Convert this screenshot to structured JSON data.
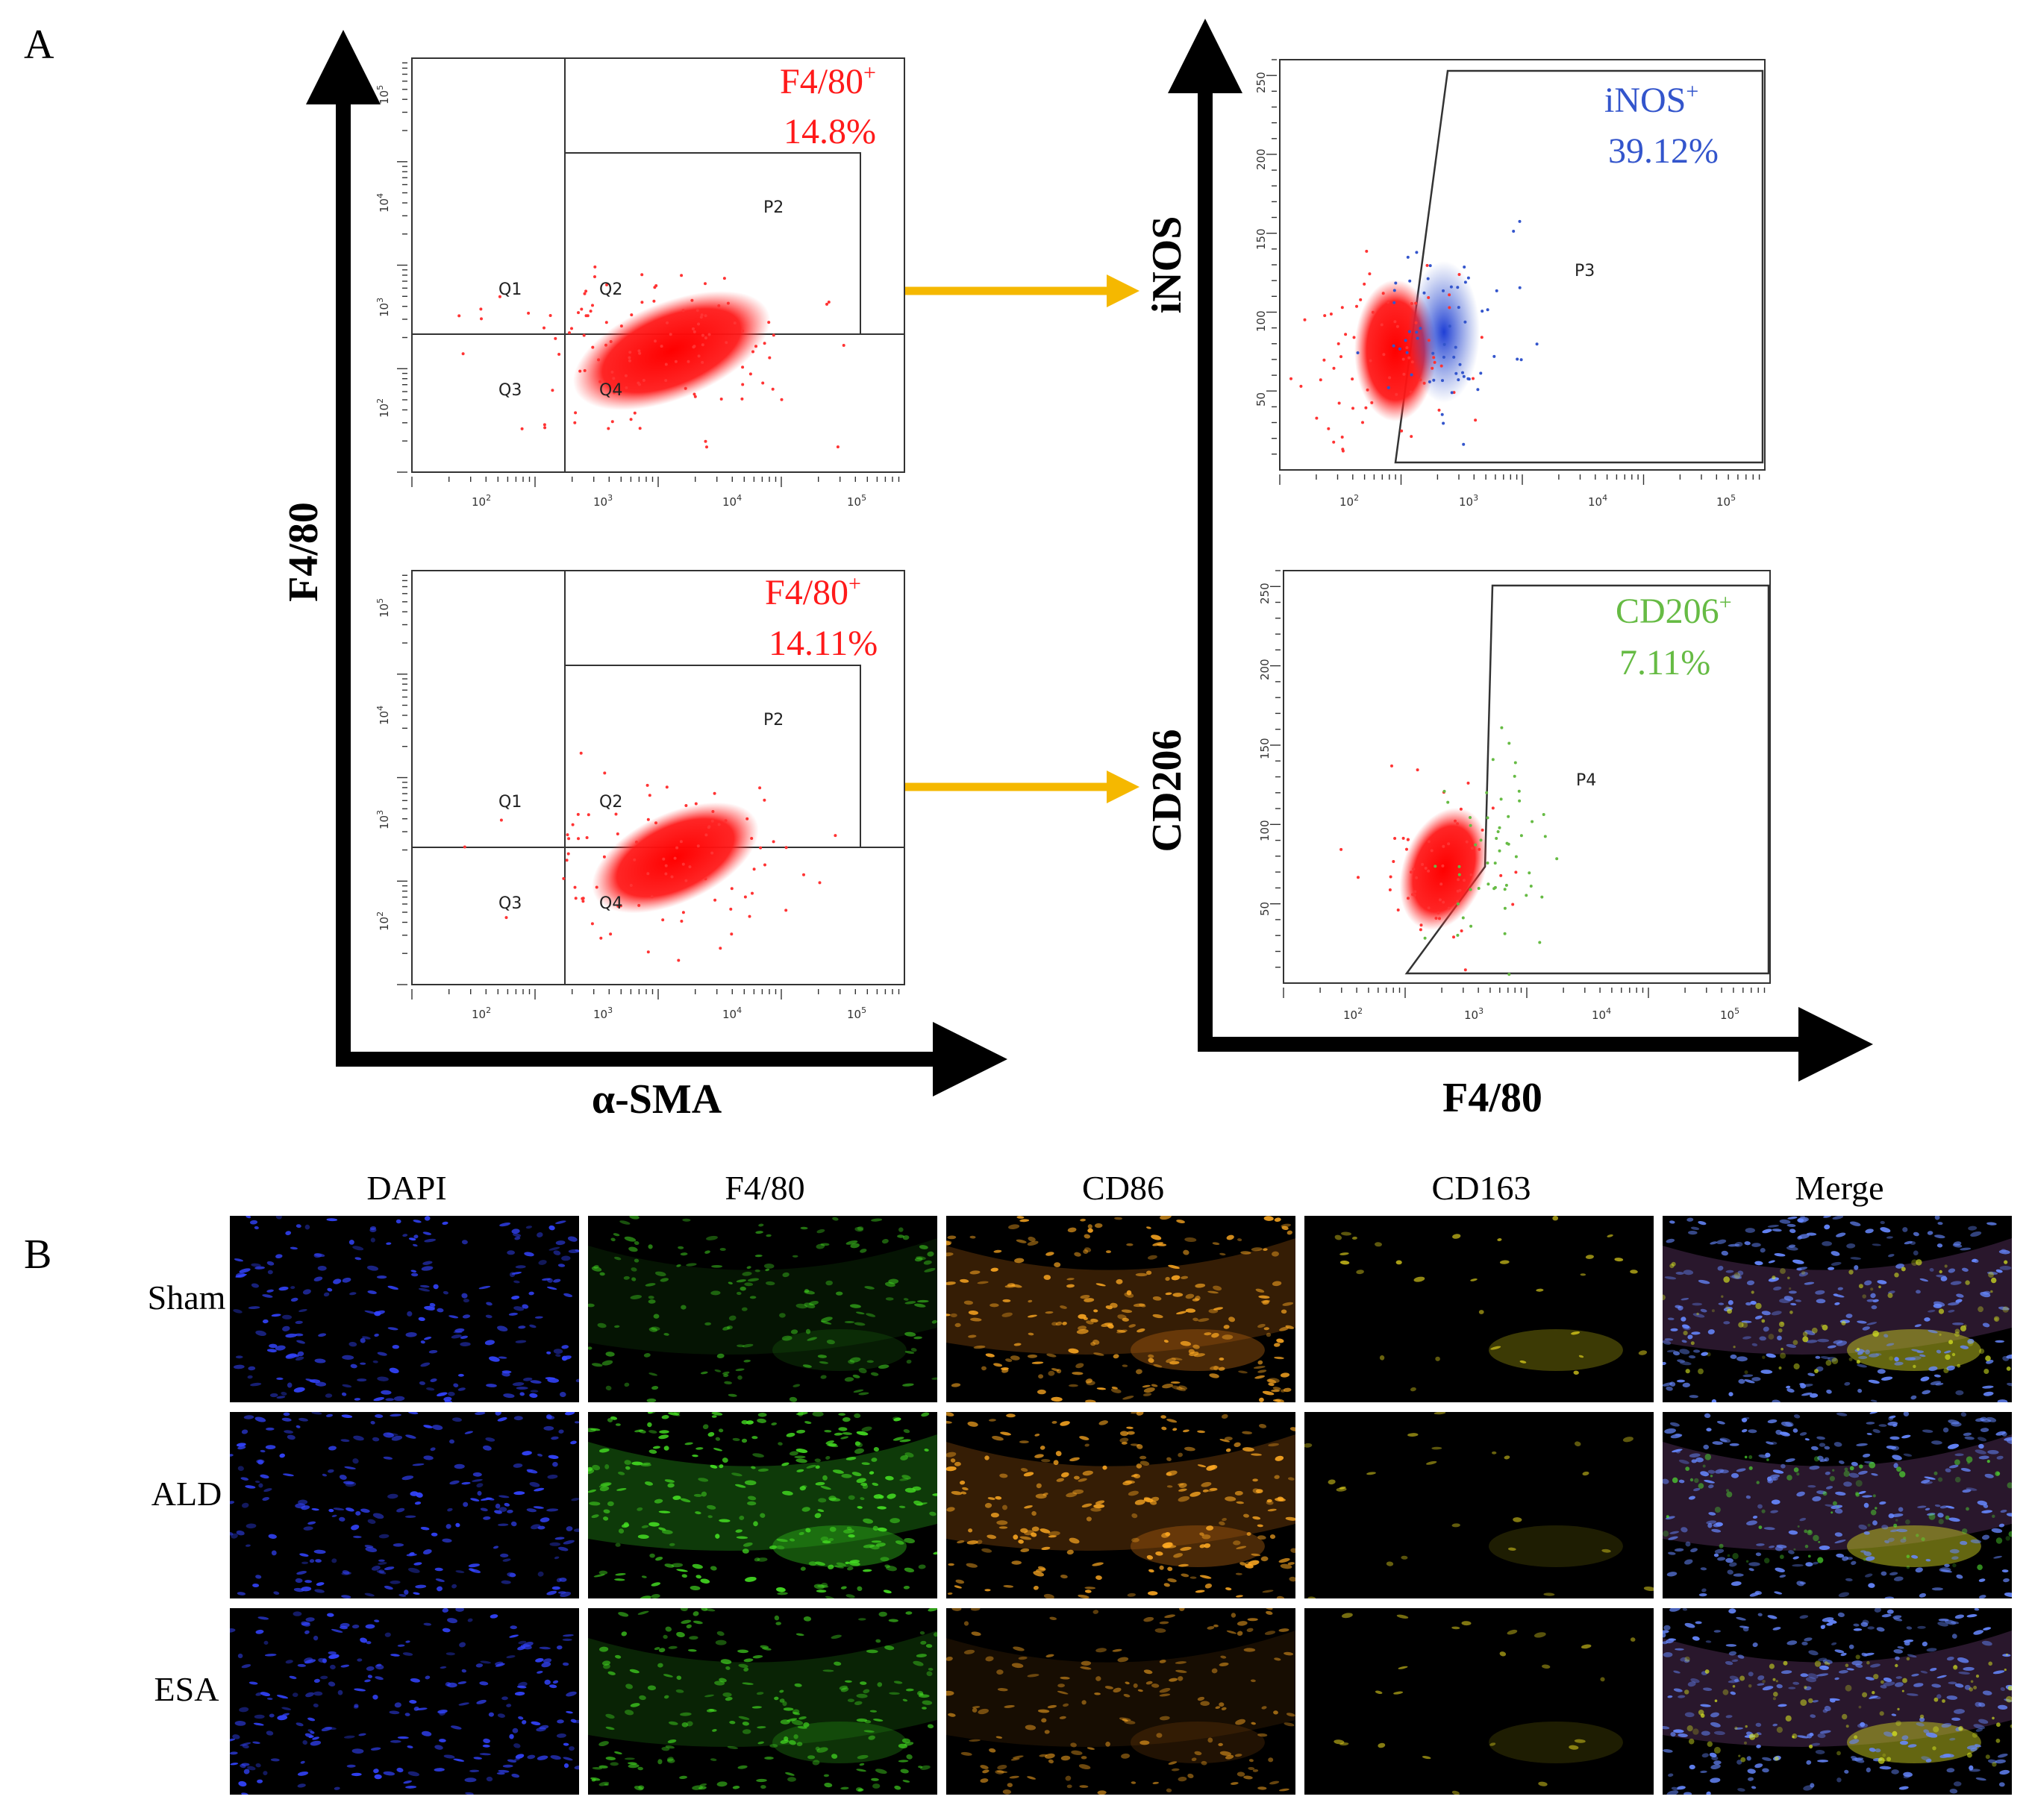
{
  "panel_a": {
    "label": "A",
    "left_y_axis": "F4/80",
    "left_x_axis": "α-SMA",
    "right_x_axis": "F4/80",
    "right_top_y_axis": "iNOS",
    "right_bottom_y_axis": "CD206"
  },
  "plots": {
    "left_top": {
      "gate_label": "F4/80",
      "gate_sup": "+",
      "percent": "14.8%",
      "gate_name": "P2",
      "quadrants": [
        "Q1",
        "Q2",
        "Q3",
        "Q4"
      ],
      "x_ticks": [
        "10",
        "10",
        "10",
        "10"
      ],
      "x_exps": [
        "2",
        "3",
        "4",
        "5"
      ],
      "y_ticks": [
        "10",
        "10",
        "10",
        "10"
      ],
      "y_exps": [
        "2",
        "3",
        "4",
        "5"
      ]
    },
    "left_bottom": {
      "gate_label": "F4/80",
      "gate_sup": "+",
      "percent": "14.11%",
      "gate_name": "P2",
      "quadrants": [
        "Q1",
        "Q2",
        "Q3",
        "Q4"
      ],
      "x_ticks": [
        "10",
        "10",
        "10",
        "10"
      ],
      "x_exps": [
        "2",
        "3",
        "4",
        "5"
      ],
      "y_ticks": [
        "10",
        "10",
        "10",
        "10"
      ],
      "y_exps": [
        "2",
        "3",
        "4",
        "5"
      ]
    },
    "right_top": {
      "gate_label": "iNOS",
      "gate_sup": "+",
      "percent": "39.12%",
      "gate_name": "P3",
      "x_ticks": [
        "10",
        "10",
        "10",
        "10"
      ],
      "x_exps": [
        "2",
        "3",
        "4",
        "5"
      ],
      "y_ticks": [
        "50",
        "100",
        "150",
        "200",
        "250"
      ]
    },
    "right_bottom": {
      "gate_label": "CD206",
      "gate_sup": "+",
      "percent": "7.11%",
      "gate_name": "P4",
      "x_ticks": [
        "10",
        "10",
        "10",
        "10"
      ],
      "x_exps": [
        "2",
        "3",
        "4",
        "5"
      ],
      "y_ticks": [
        "50",
        "100",
        "150",
        "200",
        "250"
      ]
    }
  },
  "panel_b": {
    "label": "B",
    "columns": [
      "DAPI",
      "F4/80",
      "CD86",
      "CD163",
      "Merge"
    ],
    "rows": [
      "Sham",
      "ALD",
      "ESA"
    ]
  },
  "colors": {
    "red_gate": "#ff1a1a",
    "inos_blue": "#3355cc",
    "cd206_green": "#66bb44",
    "arrow_yellow": "#f5b800",
    "axis_black": "#000000"
  }
}
